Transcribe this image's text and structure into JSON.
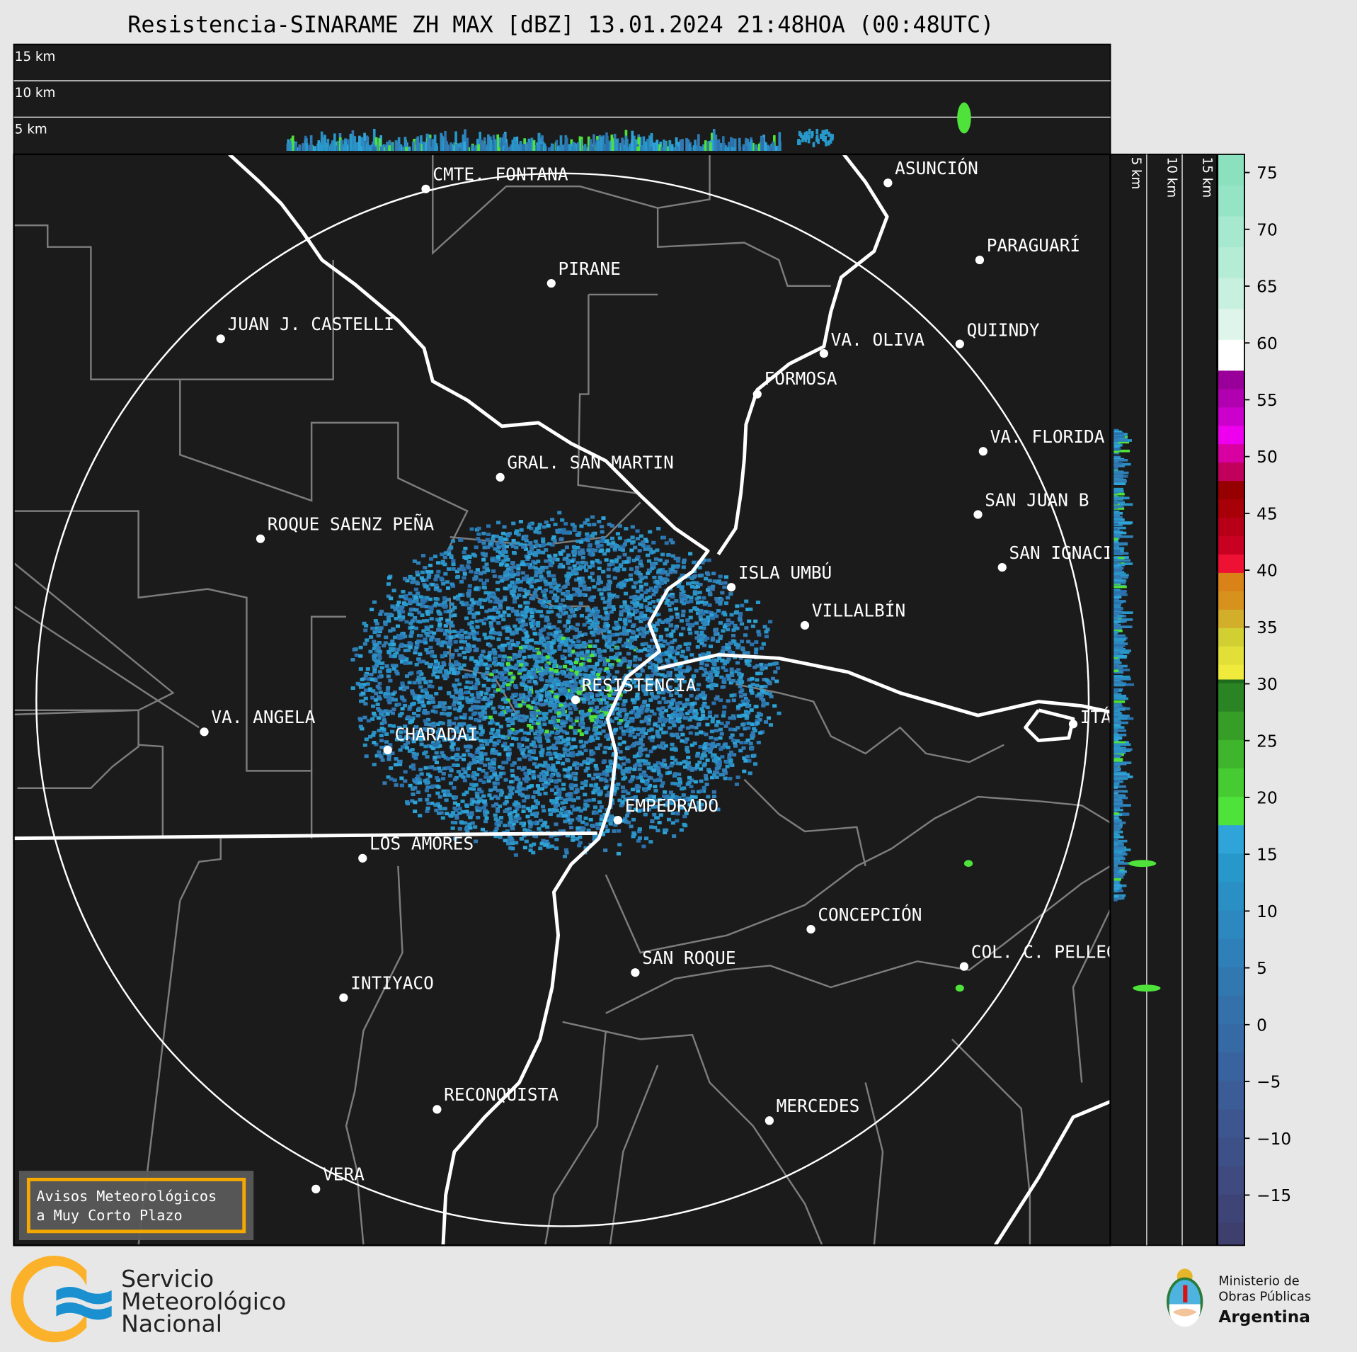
{
  "title": "Resistencia-SINARAME ZH MAX [dBZ] 13.01.2024 21:48HOA (00:48UTC)",
  "top_panel": {
    "altitude_labels": [
      "15 km",
      "10 km",
      "5 km"
    ]
  },
  "side_panel": {
    "altitude_labels": [
      "5 km",
      "10 km",
      "15 km"
    ]
  },
  "colorbar": {
    "unit": "dBZ",
    "range": [
      -19.5,
      76.5
    ],
    "ticks": [
      "75",
      "70",
      "65",
      "60",
      "55",
      "50",
      "45",
      "40",
      "35",
      "30",
      "25",
      "20",
      "15",
      "10",
      "5",
      "0",
      "−5",
      "−10",
      "−15"
    ],
    "bands": [
      [
        -20,
        -17.5,
        "#3e3f6c"
      ],
      [
        -17.5,
        -15,
        "#3f4477"
      ],
      [
        -15,
        -12.5,
        "#3f4a80"
      ],
      [
        -12.5,
        -10,
        "#3e5088"
      ],
      [
        -10,
        -7.5,
        "#3d5690"
      ],
      [
        -7.5,
        -5,
        "#3b5c97"
      ],
      [
        -5,
        -2.5,
        "#39639e"
      ],
      [
        -2.5,
        0,
        "#366aa5"
      ],
      [
        0,
        2.5,
        "#3471ab"
      ],
      [
        2.5,
        5,
        "#3178b1"
      ],
      [
        5,
        7.5,
        "#2f80b8"
      ],
      [
        7.5,
        10,
        "#2c88be"
      ],
      [
        10,
        12.5,
        "#2a90c4"
      ],
      [
        12.5,
        15,
        "#2898ca"
      ],
      [
        15,
        17.5,
        "#2ea4d8"
      ],
      [
        17.5,
        20,
        "#4ee23a"
      ],
      [
        20,
        22.5,
        "#46cc32"
      ],
      [
        22.5,
        25,
        "#3eb52c"
      ],
      [
        25,
        27.5,
        "#369e26"
      ],
      [
        27.5,
        30,
        "#2a8424"
      ],
      [
        30,
        30.5,
        "#1f6b1d"
      ],
      [
        30.5,
        32.5,
        "#f0ea3c"
      ],
      [
        32.5,
        35,
        "#e2e038"
      ],
      [
        35,
        37.5,
        "#d2cf33"
      ],
      [
        37.5,
        40,
        "#d2ae2a"
      ],
      [
        40,
        42.5,
        "#d6921c"
      ],
      [
        42.5,
        45,
        "#d88218"
      ],
      [
        45,
        47.5,
        "#ee1133"
      ],
      [
        47.5,
        50,
        "#c80022"
      ],
      [
        50,
        52.5,
        "#b70018"
      ],
      [
        52.5,
        55,
        "#a80008"
      ],
      [
        55,
        57.5,
        "#960000"
      ],
      [
        57.5,
        60,
        "#c0005a"
      ],
      [
        60,
        62.5,
        "#d800a0"
      ],
      [
        62.5,
        65,
        "#ee00ee"
      ],
      [
        65,
        67.5,
        "#cc00cc"
      ],
      [
        67.5,
        70,
        "#b000b0"
      ],
      [
        70,
        72.5,
        "#990099"
      ]
    ],
    "upper_bands": [
      [
        "#ffffff"
      ],
      [
        "#dff4ea"
      ],
      [
        "#c8f0de"
      ],
      [
        "#b5ecd5"
      ],
      [
        "#a6e9cf"
      ],
      [
        "#96e4c6"
      ],
      [
        "#8be0be"
      ]
    ]
  },
  "cities": [
    "CMTE. FONTANA",
    "PIRANE",
    "JUAN J. CASTELLI",
    "ASUNCIÓN",
    "PARAGUARÍ",
    "VA. OLIVA",
    "QUIINDY",
    "FORMOSA",
    "VA. FLORIDA",
    "GRAL. SAN MARTIN",
    "SAN JUAN B",
    "ROQUE SAENZ PEÑA",
    "SAN IGNACIO",
    "ISLA UMBÚ",
    "VILLALBÍN",
    "RESISTENCIA",
    "VA. ANGELA",
    "CHARADAI",
    "ITÁ",
    "EMPEDRADO",
    "LOS AMORES",
    "CONCEPCIÓN",
    "SAN ROQUE",
    "COL. C. PELLEGRINI",
    "INTIYACO",
    "RECONQUISTA",
    "MERCEDES",
    "VERA"
  ],
  "notice_box": {
    "line1": "Avisos Meteorológicos",
    "line2": "a Muy Corto Plazo",
    "border_color": "#f5a800"
  },
  "footer": {
    "smn": {
      "line1": "Servicio",
      "line2": "Meteorológico",
      "line3": "Nacional"
    },
    "ministry": {
      "line1": "Ministerio de",
      "line2": "Obras Públicas",
      "line3": "Argentina"
    }
  },
  "colors": {
    "background": "#e7e7e7",
    "map_background": "#1b1b1b",
    "rivers": "#ffffff",
    "borders": "#808080"
  }
}
